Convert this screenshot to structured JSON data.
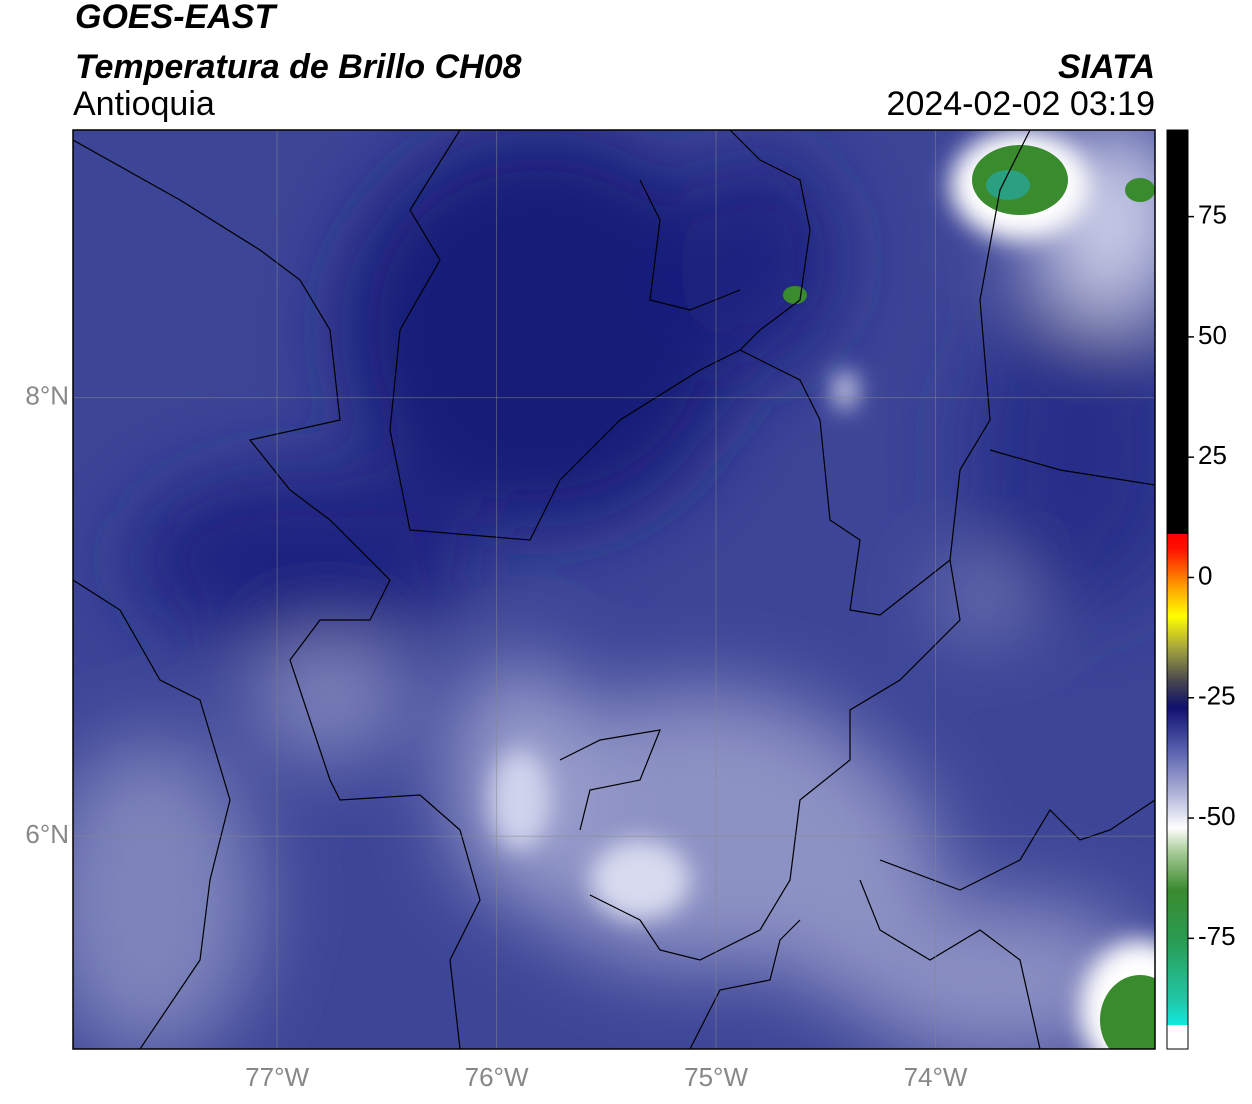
{
  "chart_data": {
    "type": "map",
    "title": "GOES-EAST",
    "subtitle": "Temperatura de Brillo CH08",
    "region": "Antioquia",
    "source": "SIATA",
    "timestamp": "2024-02-02 03:19",
    "xlim": [
      -77.93,
      -73.0
    ],
    "ylim": [
      5.03,
      9.22
    ],
    "xticks": [
      {
        "value": -77,
        "label": "77°W"
      },
      {
        "value": -76,
        "label": "76°W"
      },
      {
        "value": -75,
        "label": "75°W"
      },
      {
        "value": -74,
        "label": "74°W"
      }
    ],
    "yticks": [
      {
        "value": 6,
        "label": "6°N"
      },
      {
        "value": 8,
        "label": "8°N"
      }
    ],
    "grid": true,
    "colorbar": {
      "lim": [
        -98,
        93
      ],
      "ticks": [
        -75,
        -50,
        -25,
        0,
        25,
        50,
        75
      ],
      "stops": [
        {
          "value": -98,
          "color": "#ffffff"
        },
        {
          "value": -93,
          "color": "#ffffff"
        },
        {
          "value": -93,
          "color": "#10e8e0"
        },
        {
          "value": -88,
          "color": "#20c8a8"
        },
        {
          "value": -75,
          "color": "#2a9a50"
        },
        {
          "value": -65,
          "color": "#3a8a2e"
        },
        {
          "value": -57,
          "color": "#a8cc98"
        },
        {
          "value": -52,
          "color": "#ffffff"
        },
        {
          "value": -45,
          "color": "#b0b4d8"
        },
        {
          "value": -35,
          "color": "#5058a8"
        },
        {
          "value": -27,
          "color": "#10106e"
        },
        {
          "value": -22,
          "color": "#404050"
        },
        {
          "value": -15,
          "color": "#a0a040"
        },
        {
          "value": -8,
          "color": "#ffff00"
        },
        {
          "value": -2,
          "color": "#ffa000"
        },
        {
          "value": 6,
          "color": "#ff1000"
        },
        {
          "value": 9,
          "color": "#ff0000"
        },
        {
          "value": 9,
          "color": "#000000"
        },
        {
          "value": 93,
          "color": "#000000"
        }
      ]
    }
  }
}
